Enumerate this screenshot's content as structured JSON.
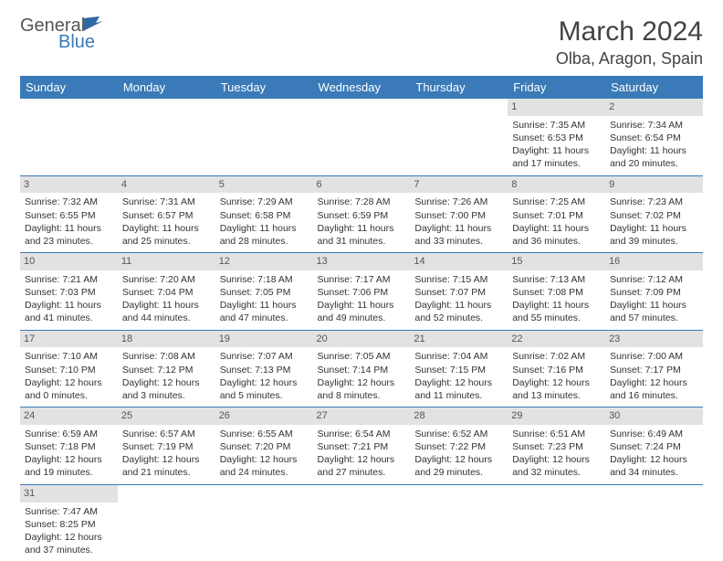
{
  "logo": {
    "text1": "General",
    "text2": "Blue"
  },
  "title": "March 2024",
  "location": "Olba, Aragon, Spain",
  "colors": {
    "header_bg": "#3a7ab8",
    "daynum_bg": "#e2e2e2",
    "text": "#333333",
    "rule": "#3a7ab8"
  },
  "day_headers": [
    "Sunday",
    "Monday",
    "Tuesday",
    "Wednesday",
    "Thursday",
    "Friday",
    "Saturday"
  ],
  "weeks": [
    [
      {
        "n": "",
        "sr": "",
        "ss": "",
        "dl": ""
      },
      {
        "n": "",
        "sr": "",
        "ss": "",
        "dl": ""
      },
      {
        "n": "",
        "sr": "",
        "ss": "",
        "dl": ""
      },
      {
        "n": "",
        "sr": "",
        "ss": "",
        "dl": ""
      },
      {
        "n": "",
        "sr": "",
        "ss": "",
        "dl": ""
      },
      {
        "n": "1",
        "sr": "Sunrise: 7:35 AM",
        "ss": "Sunset: 6:53 PM",
        "dl": "Daylight: 11 hours and 17 minutes."
      },
      {
        "n": "2",
        "sr": "Sunrise: 7:34 AM",
        "ss": "Sunset: 6:54 PM",
        "dl": "Daylight: 11 hours and 20 minutes."
      }
    ],
    [
      {
        "n": "3",
        "sr": "Sunrise: 7:32 AM",
        "ss": "Sunset: 6:55 PM",
        "dl": "Daylight: 11 hours and 23 minutes."
      },
      {
        "n": "4",
        "sr": "Sunrise: 7:31 AM",
        "ss": "Sunset: 6:57 PM",
        "dl": "Daylight: 11 hours and 25 minutes."
      },
      {
        "n": "5",
        "sr": "Sunrise: 7:29 AM",
        "ss": "Sunset: 6:58 PM",
        "dl": "Daylight: 11 hours and 28 minutes."
      },
      {
        "n": "6",
        "sr": "Sunrise: 7:28 AM",
        "ss": "Sunset: 6:59 PM",
        "dl": "Daylight: 11 hours and 31 minutes."
      },
      {
        "n": "7",
        "sr": "Sunrise: 7:26 AM",
        "ss": "Sunset: 7:00 PM",
        "dl": "Daylight: 11 hours and 33 minutes."
      },
      {
        "n": "8",
        "sr": "Sunrise: 7:25 AM",
        "ss": "Sunset: 7:01 PM",
        "dl": "Daylight: 11 hours and 36 minutes."
      },
      {
        "n": "9",
        "sr": "Sunrise: 7:23 AM",
        "ss": "Sunset: 7:02 PM",
        "dl": "Daylight: 11 hours and 39 minutes."
      }
    ],
    [
      {
        "n": "10",
        "sr": "Sunrise: 7:21 AM",
        "ss": "Sunset: 7:03 PM",
        "dl": "Daylight: 11 hours and 41 minutes."
      },
      {
        "n": "11",
        "sr": "Sunrise: 7:20 AM",
        "ss": "Sunset: 7:04 PM",
        "dl": "Daylight: 11 hours and 44 minutes."
      },
      {
        "n": "12",
        "sr": "Sunrise: 7:18 AM",
        "ss": "Sunset: 7:05 PM",
        "dl": "Daylight: 11 hours and 47 minutes."
      },
      {
        "n": "13",
        "sr": "Sunrise: 7:17 AM",
        "ss": "Sunset: 7:06 PM",
        "dl": "Daylight: 11 hours and 49 minutes."
      },
      {
        "n": "14",
        "sr": "Sunrise: 7:15 AM",
        "ss": "Sunset: 7:07 PM",
        "dl": "Daylight: 11 hours and 52 minutes."
      },
      {
        "n": "15",
        "sr": "Sunrise: 7:13 AM",
        "ss": "Sunset: 7:08 PM",
        "dl": "Daylight: 11 hours and 55 minutes."
      },
      {
        "n": "16",
        "sr": "Sunrise: 7:12 AM",
        "ss": "Sunset: 7:09 PM",
        "dl": "Daylight: 11 hours and 57 minutes."
      }
    ],
    [
      {
        "n": "17",
        "sr": "Sunrise: 7:10 AM",
        "ss": "Sunset: 7:10 PM",
        "dl": "Daylight: 12 hours and 0 minutes."
      },
      {
        "n": "18",
        "sr": "Sunrise: 7:08 AM",
        "ss": "Sunset: 7:12 PM",
        "dl": "Daylight: 12 hours and 3 minutes."
      },
      {
        "n": "19",
        "sr": "Sunrise: 7:07 AM",
        "ss": "Sunset: 7:13 PM",
        "dl": "Daylight: 12 hours and 5 minutes."
      },
      {
        "n": "20",
        "sr": "Sunrise: 7:05 AM",
        "ss": "Sunset: 7:14 PM",
        "dl": "Daylight: 12 hours and 8 minutes."
      },
      {
        "n": "21",
        "sr": "Sunrise: 7:04 AM",
        "ss": "Sunset: 7:15 PM",
        "dl": "Daylight: 12 hours and 11 minutes."
      },
      {
        "n": "22",
        "sr": "Sunrise: 7:02 AM",
        "ss": "Sunset: 7:16 PM",
        "dl": "Daylight: 12 hours and 13 minutes."
      },
      {
        "n": "23",
        "sr": "Sunrise: 7:00 AM",
        "ss": "Sunset: 7:17 PM",
        "dl": "Daylight: 12 hours and 16 minutes."
      }
    ],
    [
      {
        "n": "24",
        "sr": "Sunrise: 6:59 AM",
        "ss": "Sunset: 7:18 PM",
        "dl": "Daylight: 12 hours and 19 minutes."
      },
      {
        "n": "25",
        "sr": "Sunrise: 6:57 AM",
        "ss": "Sunset: 7:19 PM",
        "dl": "Daylight: 12 hours and 21 minutes."
      },
      {
        "n": "26",
        "sr": "Sunrise: 6:55 AM",
        "ss": "Sunset: 7:20 PM",
        "dl": "Daylight: 12 hours and 24 minutes."
      },
      {
        "n": "27",
        "sr": "Sunrise: 6:54 AM",
        "ss": "Sunset: 7:21 PM",
        "dl": "Daylight: 12 hours and 27 minutes."
      },
      {
        "n": "28",
        "sr": "Sunrise: 6:52 AM",
        "ss": "Sunset: 7:22 PM",
        "dl": "Daylight: 12 hours and 29 minutes."
      },
      {
        "n": "29",
        "sr": "Sunrise: 6:51 AM",
        "ss": "Sunset: 7:23 PM",
        "dl": "Daylight: 12 hours and 32 minutes."
      },
      {
        "n": "30",
        "sr": "Sunrise: 6:49 AM",
        "ss": "Sunset: 7:24 PM",
        "dl": "Daylight: 12 hours and 34 minutes."
      }
    ],
    [
      {
        "n": "31",
        "sr": "Sunrise: 7:47 AM",
        "ss": "Sunset: 8:25 PM",
        "dl": "Daylight: 12 hours and 37 minutes."
      },
      {
        "n": "",
        "sr": "",
        "ss": "",
        "dl": ""
      },
      {
        "n": "",
        "sr": "",
        "ss": "",
        "dl": ""
      },
      {
        "n": "",
        "sr": "",
        "ss": "",
        "dl": ""
      },
      {
        "n": "",
        "sr": "",
        "ss": "",
        "dl": ""
      },
      {
        "n": "",
        "sr": "",
        "ss": "",
        "dl": ""
      },
      {
        "n": "",
        "sr": "",
        "ss": "",
        "dl": ""
      }
    ]
  ]
}
